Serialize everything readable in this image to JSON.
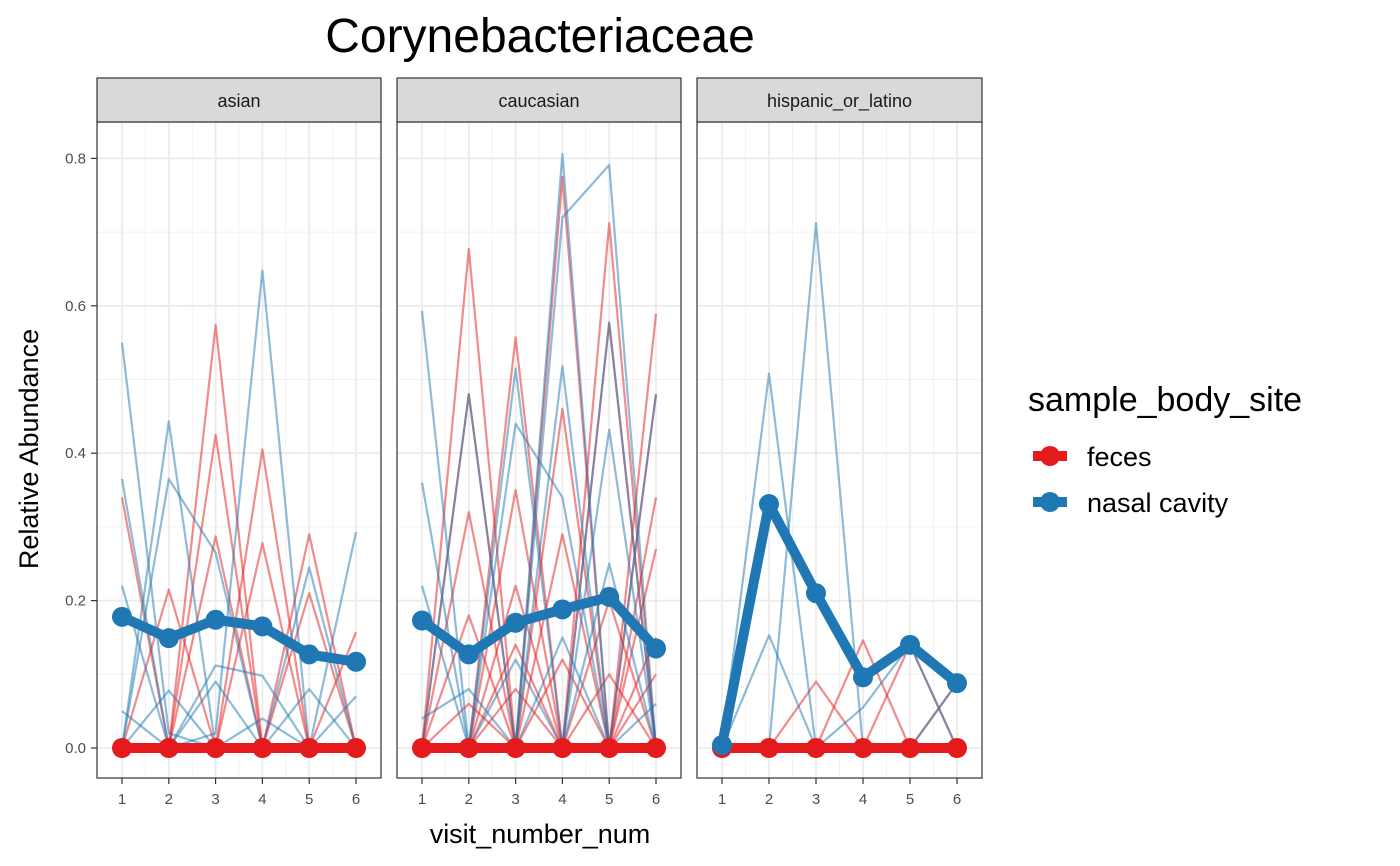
{
  "chart_data": {
    "type": "line",
    "title": "Corynebacteriaceae",
    "xlabel": "visit_number_num",
    "ylabel": "Relative Abundance",
    "x": [
      1,
      2,
      3,
      4,
      5,
      6
    ],
    "x_ticks": [
      "1",
      "2",
      "3",
      "4",
      "5",
      "6"
    ],
    "y_ticks": [
      "0.0",
      "0.2",
      "0.4",
      "0.6",
      "0.8"
    ],
    "ylim": [
      -0.035,
      0.86
    ],
    "grid": true,
    "legend": {
      "title": "sample_body_site",
      "placement": "right",
      "entries": [
        {
          "label": "feces",
          "color": "#E41A1C"
        },
        {
          "label": "nasal cavity",
          "color": "#1F78B4"
        }
      ]
    },
    "facets": [
      {
        "label": "asian",
        "mean_series": [
          {
            "name": "feces",
            "color": "#E41A1C",
            "values": [
              0.0,
              0.0,
              0.0,
              0.0,
              0.0,
              0.0
            ]
          },
          {
            "name": "nasal cavity",
            "color": "#1F78B4",
            "values": [
              0.178,
              0.149,
              0.174,
              0.165,
              0.127,
              0.117
            ]
          }
        ],
        "subject_lines": {
          "nasal cavity": [
            [
              0.55,
              0.02,
              0.0,
              0.0,
              0.0,
              0.0
            ],
            [
              0.365,
              0.0,
              0.02,
              0.648,
              0.0,
              0.0
            ],
            [
              0.0,
              0.443,
              0.0,
              0.0,
              0.0,
              0.0
            ],
            [
              0.0,
              0.365,
              0.265,
              0.0,
              0.0,
              0.0
            ],
            [
              0.0,
              0.0,
              0.0,
              0.0,
              0.245,
              0.0
            ],
            [
              0.05,
              0.0,
              0.112,
              0.098,
              0.0,
              0.293
            ],
            [
              0.0,
              0.078,
              0.0,
              0.0,
              0.0,
              0.07
            ],
            [
              0.22,
              0.0,
              0.09,
              0.0,
              0.0,
              0.0
            ],
            [
              0.0,
              0.0,
              0.0,
              0.04,
              0.0,
              0.0
            ],
            [
              0.0,
              0.0,
              0.0,
              0.0,
              0.08,
              0.0
            ]
          ],
          "feces": [
            [
              0.0,
              0.0,
              0.574,
              0.0,
              0.0,
              0.0
            ],
            [
              0.0,
              0.0,
              0.425,
              0.0,
              0.0,
              0.0
            ],
            [
              0.0,
              0.0,
              0.0,
              0.405,
              0.0,
              0.0
            ],
            [
              0.0,
              0.0,
              0.0,
              0.0,
              0.29,
              0.0
            ],
            [
              0.0,
              0.0,
              0.0,
              0.278,
              0.0,
              0.0
            ],
            [
              0.0,
              0.0,
              0.287,
              0.0,
              0.0,
              0.0
            ],
            [
              0.0,
              0.0,
              0.0,
              0.0,
              0.0,
              0.157
            ],
            [
              0.0,
              0.0,
              0.0,
              0.0,
              0.21,
              0.0
            ],
            [
              0.34,
              0.0,
              0.0,
              0.0,
              0.0,
              0.0
            ],
            [
              0.0,
              0.215,
              0.0,
              0.0,
              0.0,
              0.0
            ]
          ]
        }
      },
      {
        "label": "caucasian",
        "mean_series": [
          {
            "name": "feces",
            "color": "#E41A1C",
            "values": [
              0.0,
              0.0,
              0.0,
              0.0,
              0.0,
              0.0
            ]
          },
          {
            "name": "nasal cavity",
            "color": "#1F78B4",
            "values": [
              0.173,
              0.127,
              0.17,
              0.188,
              0.205,
              0.135
            ]
          }
        ],
        "subject_lines": {
          "nasal cavity": [
            [
              0.593,
              0.0,
              0.0,
              0.0,
              0.0,
              0.0
            ],
            [
              0.36,
              0.0,
              0.0,
              0.0,
              0.0,
              0.0
            ],
            [
              0.0,
              0.0,
              0.515,
              0.0,
              0.0,
              0.0
            ],
            [
              0.0,
              0.0,
              0.0,
              0.806,
              0.0,
              0.0
            ],
            [
              0.0,
              0.0,
              0.0,
              0.72,
              0.791,
              0.0
            ],
            [
              0.0,
              0.0,
              0.0,
              0.0,
              0.578,
              0.0
            ],
            [
              0.0,
              0.0,
              0.0,
              0.518,
              0.0,
              0.0
            ],
            [
              0.0,
              0.0,
              0.44,
              0.34,
              0.0,
              0.0
            ],
            [
              0.0,
              0.0,
              0.0,
              0.0,
              0.432,
              0.0
            ],
            [
              0.0,
              0.48,
              0.0,
              0.0,
              0.0,
              0.0
            ],
            [
              0.0,
              0.0,
              0.0,
              0.0,
              0.0,
              0.48
            ],
            [
              0.22,
              0.0,
              0.0,
              0.15,
              0.0,
              0.0
            ],
            [
              0.0,
              0.0,
              0.12,
              0.0,
              0.0,
              0.0
            ],
            [
              0.04,
              0.08,
              0.0,
              0.0,
              0.0,
              0.0
            ],
            [
              0.0,
              0.0,
              0.0,
              0.0,
              0.0,
              0.06
            ],
            [
              0.0,
              0.0,
              0.0,
              0.0,
              0.25,
              0.0
            ]
          ],
          "feces": [
            [
              0.0,
              0.677,
              0.0,
              0.0,
              0.0,
              0.0
            ],
            [
              0.0,
              0.0,
              0.557,
              0.0,
              0.0,
              0.0
            ],
            [
              0.0,
              0.0,
              0.0,
              0.775,
              0.0,
              0.0
            ],
            [
              0.0,
              0.0,
              0.0,
              0.0,
              0.712,
              0.0
            ],
            [
              0.0,
              0.0,
              0.0,
              0.0,
              0.0,
              0.589
            ],
            [
              0.0,
              0.0,
              0.0,
              0.0,
              0.576,
              0.0
            ],
            [
              0.0,
              0.48,
              0.0,
              0.0,
              0.0,
              0.0
            ],
            [
              0.0,
              0.0,
              0.0,
              0.46,
              0.0,
              0.0
            ],
            [
              0.0,
              0.0,
              0.0,
              0.0,
              0.0,
              0.48
            ],
            [
              0.0,
              0.0,
              0.35,
              0.0,
              0.0,
              0.0
            ],
            [
              0.0,
              0.32,
              0.0,
              0.0,
              0.0,
              0.0
            ],
            [
              0.0,
              0.0,
              0.0,
              0.0,
              0.0,
              0.34
            ],
            [
              0.0,
              0.0,
              0.0,
              0.29,
              0.0,
              0.0
            ],
            [
              0.0,
              0.0,
              0.0,
              0.0,
              0.0,
              0.27
            ],
            [
              0.0,
              0.0,
              0.22,
              0.0,
              0.0,
              0.0
            ],
            [
              0.0,
              0.0,
              0.0,
              0.0,
              0.2,
              0.0
            ],
            [
              0.0,
              0.18,
              0.0,
              0.0,
              0.0,
              0.0
            ],
            [
              0.0,
              0.0,
              0.0,
              0.0,
              0.0,
              0.15
            ],
            [
              0.0,
              0.0,
              0.14,
              0.0,
              0.0,
              0.0
            ],
            [
              0.0,
              0.0,
              0.0,
              0.12,
              0.0,
              0.0
            ],
            [
              0.0,
              0.0,
              0.0,
              0.0,
              0.1,
              0.0
            ],
            [
              0.0,
              0.0,
              0.0,
              0.0,
              0.0,
              0.1
            ],
            [
              0.0,
              0.0,
              0.08,
              0.0,
              0.0,
              0.0
            ],
            [
              0.0,
              0.06,
              0.0,
              0.0,
              0.0,
              0.0
            ]
          ]
        }
      },
      {
        "label": "hispanic_or_latino",
        "mean_series": [
          {
            "name": "feces",
            "color": "#E41A1C",
            "values": [
              0.0,
              0.0,
              0.0,
              0.0,
              0.0,
              0.0
            ]
          },
          {
            "name": "nasal cavity",
            "color": "#1F78B4",
            "values": [
              0.004,
              0.331,
              0.21,
              0.096,
              0.14,
              0.088
            ]
          }
        ],
        "subject_lines": {
          "nasal cavity": [
            [
              0.004,
              0.508,
              0.0,
              0.0,
              0.0,
              0.0
            ],
            [
              0.0,
              0.0,
              0.712,
              0.0,
              0.0,
              0.0
            ],
            [
              0.0,
              0.153,
              0.0,
              0.0,
              0.0,
              0.0
            ],
            [
              0.0,
              0.0,
              0.0,
              0.055,
              0.14,
              0.0
            ],
            [
              0.0,
              0.0,
              0.0,
              0.0,
              0.0,
              0.088
            ]
          ],
          "feces": [
            [
              0.0,
              0.0,
              0.0,
              0.146,
              0.0,
              0.0
            ],
            [
              0.0,
              0.0,
              0.09,
              0.0,
              0.0,
              0.0
            ],
            [
              0.0,
              0.0,
              0.0,
              0.0,
              0.14,
              0.0
            ],
            [
              0.0,
              0.0,
              0.0,
              0.0,
              0.0,
              0.088
            ]
          ]
        }
      }
    ]
  }
}
